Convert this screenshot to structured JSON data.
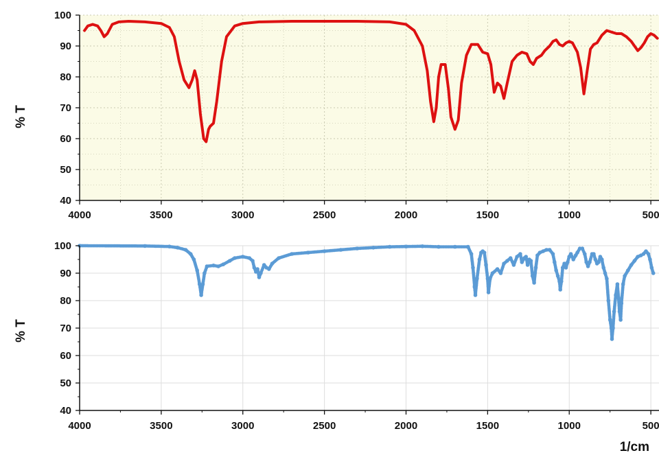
{
  "chart_data": [
    {
      "type": "line",
      "ylabel": "% T",
      "xlabel": "",
      "xlim": [
        4000,
        450
      ],
      "ylim": [
        40,
        100
      ],
      "xticks": [
        4000,
        3500,
        3000,
        2500,
        2000,
        1500,
        1000,
        500
      ],
      "yticks": [
        40,
        50,
        60,
        70,
        80,
        90,
        100
      ],
      "grid": true,
      "background": "#fbfbe6",
      "grid_color": "#c9c9b0",
      "color": "#dd1111",
      "series": [
        {
          "points": [
            [
              3970,
              95
            ],
            [
              3950,
              96.5
            ],
            [
              3920,
              97
            ],
            [
              3890,
              96.5
            ],
            [
              3870,
              95
            ],
            [
              3850,
              93
            ],
            [
              3830,
              94
            ],
            [
              3800,
              97
            ],
            [
              3760,
              97.8
            ],
            [
              3700,
              98
            ],
            [
              3600,
              97.8
            ],
            [
              3500,
              97.3
            ],
            [
              3450,
              96
            ],
            [
              3420,
              93
            ],
            [
              3390,
              85
            ],
            [
              3360,
              79
            ],
            [
              3330,
              76.5
            ],
            [
              3310,
              79
            ],
            [
              3295,
              82
            ],
            [
              3280,
              79
            ],
            [
              3260,
              68
            ],
            [
              3240,
              60
            ],
            [
              3225,
              59
            ],
            [
              3210,
              63
            ],
            [
              3200,
              64
            ],
            [
              3180,
              65
            ],
            [
              3160,
              72
            ],
            [
              3130,
              85
            ],
            [
              3100,
              93
            ],
            [
              3050,
              96.5
            ],
            [
              3000,
              97.3
            ],
            [
              2900,
              97.8
            ],
            [
              2700,
              98
            ],
            [
              2500,
              98
            ],
            [
              2300,
              98
            ],
            [
              2100,
              97.8
            ],
            [
              2000,
              97
            ],
            [
              1950,
              95
            ],
            [
              1900,
              90
            ],
            [
              1870,
              82
            ],
            [
              1850,
              72
            ],
            [
              1830,
              65.5
            ],
            [
              1815,
              70
            ],
            [
              1800,
              80
            ],
            [
              1785,
              84
            ],
            [
              1760,
              84
            ],
            [
              1740,
              76
            ],
            [
              1725,
              67
            ],
            [
              1700,
              63
            ],
            [
              1680,
              66
            ],
            [
              1660,
              78
            ],
            [
              1630,
              87
            ],
            [
              1600,
              90.5
            ],
            [
              1560,
              90.5
            ],
            [
              1530,
              88
            ],
            [
              1500,
              87.5
            ],
            [
              1480,
              84
            ],
            [
              1460,
              75
            ],
            [
              1440,
              78
            ],
            [
              1420,
              77
            ],
            [
              1400,
              73
            ],
            [
              1380,
              78
            ],
            [
              1350,
              85
            ],
            [
              1320,
              87
            ],
            [
              1290,
              88
            ],
            [
              1260,
              87.5
            ],
            [
              1240,
              85
            ],
            [
              1220,
              84
            ],
            [
              1200,
              86
            ],
            [
              1170,
              87
            ],
            [
              1150,
              88.5
            ],
            [
              1120,
              90
            ],
            [
              1100,
              91.5
            ],
            [
              1080,
              92
            ],
            [
              1060,
              90.5
            ],
            [
              1040,
              90
            ],
            [
              1020,
              91
            ],
            [
              1000,
              91.5
            ],
            [
              980,
              91
            ],
            [
              950,
              88
            ],
            [
              930,
              83
            ],
            [
              910,
              74.5
            ],
            [
              890,
              82
            ],
            [
              870,
              89
            ],
            [
              850,
              90.5
            ],
            [
              830,
              91
            ],
            [
              800,
              93.5
            ],
            [
              770,
              95
            ],
            [
              740,
              94.5
            ],
            [
              710,
              94
            ],
            [
              680,
              94
            ],
            [
              650,
              93
            ],
            [
              620,
              91.5
            ],
            [
              600,
              90
            ],
            [
              580,
              88.5
            ],
            [
              560,
              89.5
            ],
            [
              540,
              91
            ],
            [
              520,
              93
            ],
            [
              500,
              94
            ],
            [
              480,
              93.5
            ],
            [
              460,
              92.5
            ]
          ]
        }
      ]
    },
    {
      "type": "scatter",
      "ylabel": "% T",
      "xlabel": "1/cm",
      "xlim": [
        4000,
        450
      ],
      "ylim": [
        40,
        100
      ],
      "xticks": [
        4000,
        3500,
        3000,
        2500,
        2000,
        1500,
        1000,
        500
      ],
      "yticks": [
        40,
        50,
        60,
        70,
        80,
        90,
        100
      ],
      "grid": true,
      "background": "#ffffff",
      "grid_color": "#dddddd",
      "color": "#5b9bd5",
      "series": [
        {
          "points": [
            [
              4000,
              100
            ],
            [
              3600,
              99.9
            ],
            [
              3450,
              99.7
            ],
            [
              3400,
              99.3
            ],
            [
              3350,
              98.5
            ],
            [
              3320,
              97
            ],
            [
              3300,
              95
            ],
            [
              3280,
              91
            ],
            [
              3265,
              86
            ],
            [
              3255,
              82
            ],
            [
              3245,
              86
            ],
            [
              3235,
              90
            ],
            [
              3220,
              92.5
            ],
            [
              3180,
              92.8
            ],
            [
              3150,
              92.5
            ],
            [
              3120,
              93.2
            ],
            [
              3080,
              94.5
            ],
            [
              3050,
              95.5
            ],
            [
              3000,
              96
            ],
            [
              2960,
              95.5
            ],
            [
              2940,
              94.5
            ],
            [
              2930,
              92
            ],
            [
              2920,
              90.5
            ],
            [
              2910,
              91.5
            ],
            [
              2900,
              88.5
            ],
            [
              2890,
              90
            ],
            [
              2870,
              93
            ],
            [
              2855,
              92
            ],
            [
              2840,
              91.5
            ],
            [
              2820,
              93.5
            ],
            [
              2780,
              95.5
            ],
            [
              2700,
              97
            ],
            [
              2600,
              97.5
            ],
            [
              2500,
              98
            ],
            [
              2400,
              98.5
            ],
            [
              2300,
              99
            ],
            [
              2200,
              99.3
            ],
            [
              2100,
              99.6
            ],
            [
              2000,
              99.7
            ],
            [
              1900,
              99.8
            ],
            [
              1800,
              99.6
            ],
            [
              1700,
              99.6
            ],
            [
              1620,
              99.6
            ],
            [
              1600,
              97
            ],
            [
              1590,
              92
            ],
            [
              1580,
              85
            ],
            [
              1575,
              82
            ],
            [
              1565,
              88
            ],
            [
              1550,
              95
            ],
            [
              1540,
              97.5
            ],
            [
              1530,
              98
            ],
            [
              1520,
              97.5
            ],
            [
              1510,
              93
            ],
            [
              1500,
              88
            ],
            [
              1495,
              83
            ],
            [
              1485,
              88
            ],
            [
              1470,
              90
            ],
            [
              1440,
              91.5
            ],
            [
              1420,
              90
            ],
            [
              1400,
              93.5
            ],
            [
              1380,
              94.5
            ],
            [
              1360,
              95.5
            ],
            [
              1340,
              93
            ],
            [
              1320,
              96
            ],
            [
              1300,
              97
            ],
            [
              1290,
              94
            ],
            [
              1275,
              95.5
            ],
            [
              1265,
              96
            ],
            [
              1255,
              93
            ],
            [
              1245,
              95
            ],
            [
              1235,
              94.5
            ],
            [
              1225,
              89
            ],
            [
              1215,
              86.5
            ],
            [
              1205,
              92
            ],
            [
              1195,
              96.5
            ],
            [
              1180,
              97.5
            ],
            [
              1160,
              98
            ],
            [
              1140,
              98.5
            ],
            [
              1120,
              98.5
            ],
            [
              1100,
              97
            ],
            [
              1090,
              94
            ],
            [
              1080,
              91
            ],
            [
              1070,
              89
            ],
            [
              1060,
              87
            ],
            [
              1055,
              84
            ],
            [
              1048,
              87
            ],
            [
              1040,
              92
            ],
            [
              1030,
              93.5
            ],
            [
              1020,
              92
            ],
            [
              1010,
              94
            ],
            [
              1000,
              96
            ],
            [
              990,
              97
            ],
            [
              975,
              95
            ],
            [
              960,
              96.5
            ],
            [
              950,
              97.5
            ],
            [
              935,
              99
            ],
            [
              920,
              99
            ],
            [
              905,
              97
            ],
            [
              895,
              94
            ],
            [
              885,
              92.5
            ],
            [
              875,
              94
            ],
            [
              860,
              97
            ],
            [
              850,
              97
            ],
            [
              840,
              95
            ],
            [
              830,
              93.5
            ],
            [
              820,
              94
            ],
            [
              810,
              96
            ],
            [
              800,
              95
            ],
            [
              790,
              92
            ],
            [
              780,
              90
            ],
            [
              770,
              88
            ],
            [
              760,
              80
            ],
            [
              750,
              73
            ],
            [
              742,
              70
            ],
            [
              738,
              66
            ],
            [
              732,
              70
            ],
            [
              725,
              76
            ],
            [
              715,
              82
            ],
            [
              705,
              86
            ],
            [
              698,
              81
            ],
            [
              692,
              76
            ],
            [
              685,
              73
            ],
            [
              680,
              79
            ],
            [
              670,
              86
            ],
            [
              660,
              89
            ],
            [
              640,
              91
            ],
            [
              620,
              93
            ],
            [
              600,
              94.5
            ],
            [
              580,
              96
            ],
            [
              560,
              96.5
            ],
            [
              545,
              97
            ],
            [
              530,
              98
            ],
            [
              515,
              97
            ],
            [
              505,
              95
            ],
            [
              495,
              92
            ],
            [
              485,
              90
            ]
          ]
        }
      ]
    }
  ]
}
